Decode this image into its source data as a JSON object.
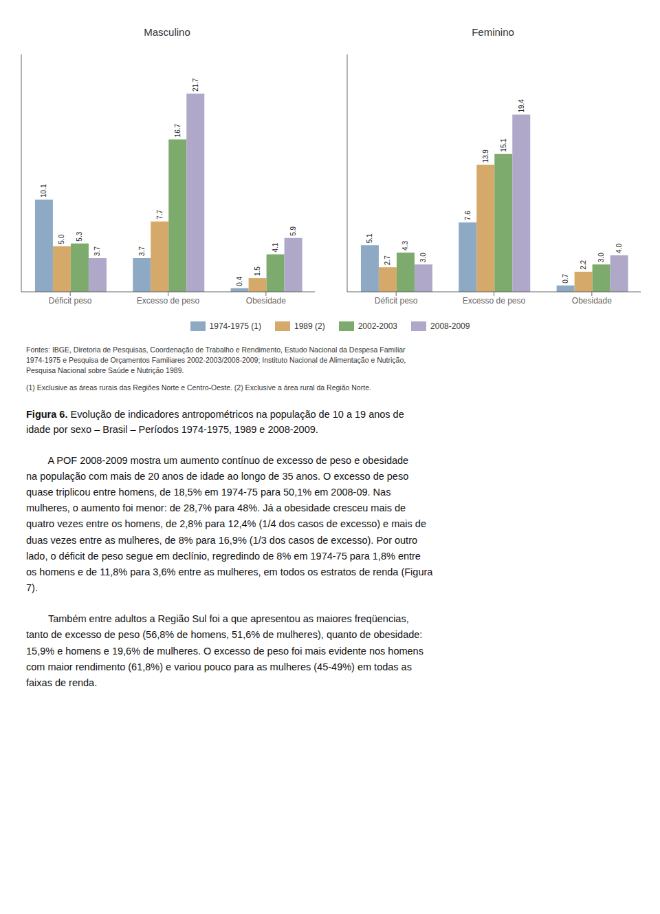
{
  "chart_data": [
    {
      "type": "bar",
      "title": "Masculino",
      "categories": [
        "Déficit peso",
        "Excesso de peso",
        "Obesidade"
      ],
      "series": [
        {
          "name": "1974-1975 (1)",
          "color": "#8da9c4",
          "values": [
            10.1,
            3.7,
            0.4
          ],
          "value_labels": [
            "10.1",
            "3.7",
            "0.4"
          ]
        },
        {
          "name": "1989 (2)",
          "color": "#d4a96a",
          "values": [
            5.0,
            7.7,
            1.5
          ],
          "value_labels": [
            "5.0",
            "7.7",
            "1.5"
          ]
        },
        {
          "name": "2002-2003",
          "color": "#7dab6e",
          "values": [
            5.3,
            16.7,
            4.1
          ],
          "value_labels": [
            "5.3",
            "16.7",
            "4.1"
          ]
        },
        {
          "name": "2008-2009",
          "color": "#b0a8c8",
          "values": [
            3.7,
            21.7,
            5.9
          ],
          "value_labels": [
            "3.7",
            "21.7",
            "5.9"
          ]
        }
      ],
      "ylim": [
        0,
        26
      ],
      "yticks": [],
      "grid": false,
      "data_labels": true,
      "tick_labels": "x",
      "legend": "bottom",
      "annotations": [
        "Fontes: IBGE, Diretoria de Pesquisas, Coordenação de Trabalho e Rendimento, Estudo Nacional da Despesa Familiar\n1974-1975 e Pesquisa de Orçamentos Familiares 2002-2003/2008-2009; Instituto Nacional de Alimentação e Nutrição,\nPesquisa Nacional sobre Saúde e Nutrição 1989.",
        "(1) Exclusive as áreas rurais das Regiões Norte e Centro-Oeste. (2) Exclusive a área rural da Região Norte.",
        "Figura 6.",
        " Evolução de indicadores antropométricos na população de 10 a 19 anos de\nidade por sexo – Brasil – Períodos 1974-1975, 1989 e 2008-2009.",
        "        A POF 2008-2009 mostra um aumento contínuo de excesso de peso e obesidade\nna população com mais de 20 anos de idade ao longo de 35 anos. O excesso de peso\nquase triplicou entre homens, de 18,5% em 1974-75 para 50,1% em 2008-09. Nas\nmulheres, o aumento foi menor: de 28,7% para 48%. Já a obesidade cresceu mais de\nquatro vezes entre os homens, de 2,8% para 12,4% (1/4 dos casos de excesso) e mais de\nduas vezes entre as mulheres, de 8% para 16,9% (1/3 dos casos de excesso). Por outro\nlado, o déficit de peso segue em declínio, regredindo de 8% em 1974-75 para 1,8% entre\nos homens e de 11,8% para 3,6% entre as mulheres, em todos os estratos de renda (Figura\n7).",
        "        Também entre adultos a Região Sul foi a que apresentou as maiores freqüencias,\ntanto de excesso de peso (56,8% de homens, 51,6% de mulheres), quanto de obesidade:\n15,9% e homens e 19,6% de mulheres. O excesso de peso foi mais evidente nos homens\ncom maior rendimento (61,8%) e variou pouco para as mulheres (45-49%) em todas as\nfaixas de renda."
      ]
    },
    {
      "type": "bar",
      "title": "Feminino",
      "categories": [
        "Déficit peso",
        "Excesso de peso",
        "Obesidade"
      ],
      "series": [
        {
          "name": "1974-1975 (1)",
          "color": "#8da9c4",
          "values": [
            5.1,
            7.6,
            0.7
          ],
          "value_labels": [
            "5.1",
            "7.6",
            "0.7"
          ]
        },
        {
          "name": "1989 (2)",
          "color": "#d4a96a",
          "values": [
            2.7,
            13.9,
            2.2
          ],
          "value_labels": [
            "2.7",
            "13.9",
            "2.2"
          ]
        },
        {
          "name": "2002-2003",
          "color": "#7dab6e",
          "values": [
            4.3,
            15.1,
            3.0
          ],
          "value_labels": [
            "4.3",
            "15.1",
            "3.0"
          ]
        },
        {
          "name": "2008-2009",
          "color": "#b0a8c8",
          "values": [
            3.0,
            19.4,
            4.0
          ],
          "value_labels": [
            "3.0",
            "19.4",
            "4.0"
          ]
        }
      ],
      "ylim": [
        0,
        26
      ],
      "yticks": [],
      "grid": false,
      "data_labels": true,
      "tick_labels": "x",
      "legend": "bottom"
    }
  ]
}
